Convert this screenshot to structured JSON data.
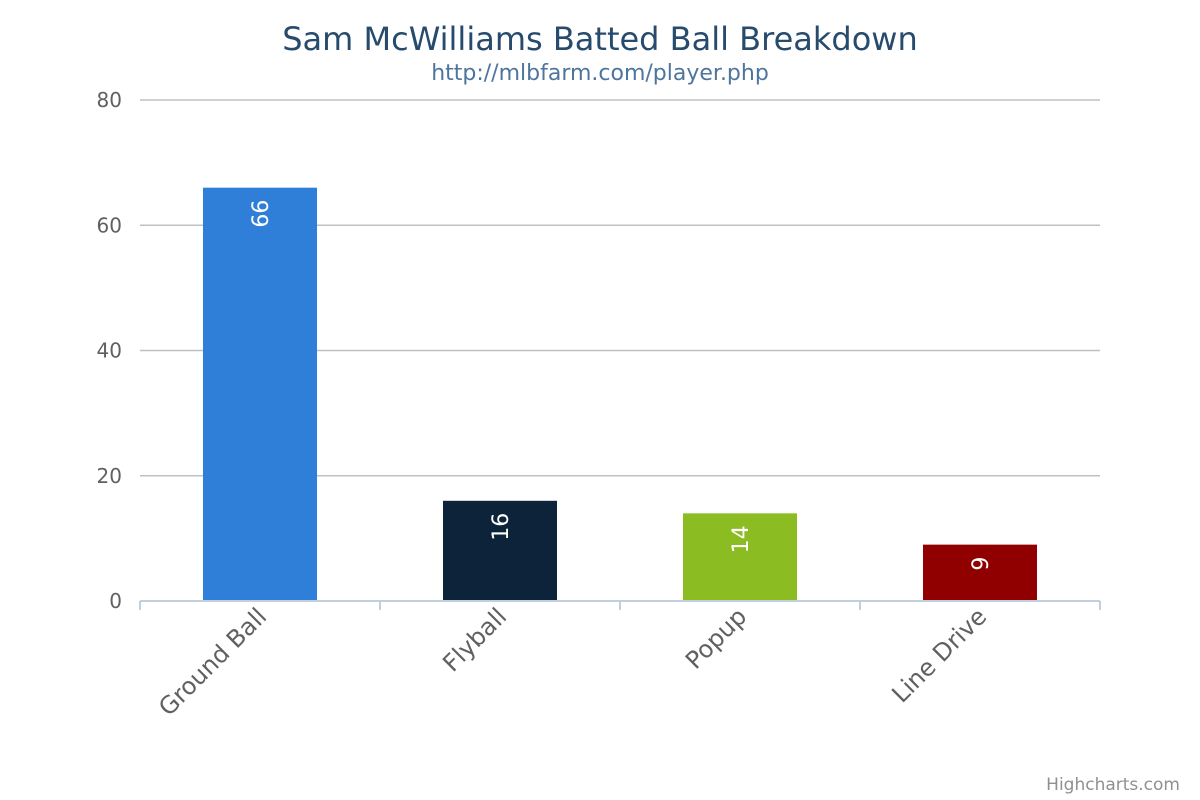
{
  "chart_data": {
    "type": "bar",
    "title": "Sam McWilliams Batted Ball Breakdown",
    "subtitle": "http://mlbfarm.com/player.php",
    "xlabel": "",
    "ylabel": "",
    "categories": [
      "Ground Ball",
      "Flyball",
      "Popup",
      "Line Drive"
    ],
    "values": [
      66,
      16,
      14,
      9
    ],
    "colors": [
      "#2f7ed8",
      "#0d233a",
      "#8bbc21",
      "#910000"
    ],
    "ylim": [
      0,
      80
    ],
    "yticks": [
      0,
      20,
      40,
      60,
      80
    ],
    "grid": true,
    "legend": "none",
    "data_labels": true
  },
  "credits": "Highcharts.com"
}
